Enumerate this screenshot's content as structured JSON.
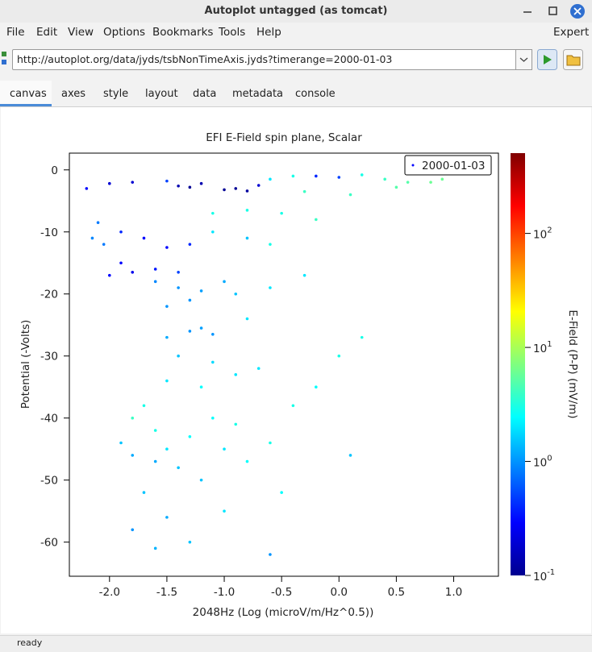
{
  "window": {
    "title": "Autoplot untagged (as tomcat)"
  },
  "menu": [
    "File",
    "Edit",
    "View",
    "Options",
    "Bookmarks",
    "Tools",
    "Help"
  ],
  "expert": "Expert",
  "url": "http://autoplot.org/data/jyds/tsbNonTimeAxis.jyds?timerange=2000-01-03",
  "tabs": [
    "canvas",
    "axes",
    "style",
    "layout",
    "data",
    "metadata",
    "console"
  ],
  "active_tab": 0,
  "status": "ready",
  "chart_data": {
    "type": "scatter",
    "title": "EFI  E-Field spin plane, Scalar",
    "xlabel": "2048Hz (Log (microV/m/Hz^0.5))",
    "ylabel": "Potential (-Volts)",
    "zlabel": "E-Field (P-P) (mV/m)",
    "xlim": [
      -2.35,
      1.39
    ],
    "ylim": [
      -65.5,
      2.7
    ],
    "zlim": [
      0.1,
      506
    ],
    "zscale": "log",
    "colormap": "jet",
    "xticks": [
      {
        "value": -2,
        "label": "-2.0"
      },
      {
        "value": -1.5,
        "label": "-1.5"
      },
      {
        "value": -1,
        "label": "-1.0"
      },
      {
        "value": -0.5,
        "label": "-0.5"
      },
      {
        "value": 0,
        "label": "0.0"
      },
      0.5,
      {
        "value": 1,
        "label": "1.0"
      }
    ],
    "yticks": [
      0,
      -10,
      -20,
      -30,
      -40,
      -50,
      -60
    ],
    "zticks": [
      {
        "value": 0.1,
        "label": "10^-1"
      },
      {
        "value": 1,
        "label": "10^0"
      },
      {
        "value": 10,
        "label": "10^1"
      },
      {
        "value": 100,
        "label": "10^2"
      }
    ],
    "legend": "top-right",
    "series": [
      {
        "name": "2000-01-03",
        "x": [
          -2.2,
          -2.0,
          -1.8,
          -1.5,
          -1.4,
          -1.3,
          -1.2,
          -1.0,
          -0.9,
          -0.8,
          -0.7,
          -0.6,
          -0.4,
          -0.2,
          0.0,
          0.2,
          0.4,
          0.6,
          0.8,
          0.9,
          0.5,
          -0.3,
          0.1,
          -1.1,
          -0.8,
          -0.5,
          -0.2,
          -2.1,
          -2.15,
          -2.05,
          -1.9,
          -1.7,
          -1.5,
          -1.3,
          -1.1,
          -0.8,
          -0.6,
          -1.9,
          -1.8,
          -2.0,
          -1.6,
          -1.4,
          -1.6,
          -1.4,
          -1.2,
          -1.0,
          -1.3,
          -1.5,
          -0.9,
          -0.6,
          -0.3,
          -1.3,
          -1.2,
          -1.1,
          -1.5,
          -0.8,
          -1.4,
          -1.1,
          -0.9,
          -1.2,
          -0.7,
          -1.5,
          -1.7,
          -1.8,
          -1.6,
          -1.9,
          -1.8,
          -1.5,
          -1.3,
          -1.1,
          -0.9,
          -1.0,
          -1.4,
          -1.6,
          -1.2,
          -0.8,
          -0.6,
          -0.4,
          -0.2,
          0.0,
          0.2,
          -1.7,
          -1.5,
          -1.8,
          -1.6,
          -1.3,
          -1.0,
          -0.5,
          0.1,
          -0.6
        ],
        "values": [
          -3,
          -2.2,
          -2,
          -1.8,
          -2.6,
          -2.8,
          -2.2,
          -3.2,
          -3,
          -3.4,
          -2.5,
          -1.5,
          -1,
          -1,
          -1.2,
          -0.8,
          -1.5,
          -2,
          -2,
          -1.5,
          -2.8,
          -3.5,
          -4,
          -7,
          -6.5,
          -7,
          -8,
          -8.5,
          -11,
          -12,
          -10,
          -11,
          -12.5,
          -12,
          -10,
          -11,
          -12,
          -15,
          -16.5,
          -17,
          -16,
          -16.5,
          -18,
          -19,
          -19.5,
          -18,
          -21,
          -22,
          -20,
          -19,
          -17,
          -26,
          -25.5,
          -26.5,
          -27,
          -24,
          -30,
          -31,
          -33,
          -35,
          -32,
          -34,
          -38,
          -40,
          -42,
          -44,
          -46,
          -45,
          -43,
          -40,
          -41,
          -45,
          -48,
          -47,
          -50,
          -47,
          -44,
          -38,
          -35,
          -30,
          -27,
          -52,
          -56,
          -58,
          -61,
          -60,
          -55,
          -52,
          -46,
          -62
        ],
        "z": [
          0.3,
          0.2,
          0.2,
          0.5,
          0.15,
          0.12,
          0.15,
          0.12,
          0.12,
          0.13,
          0.2,
          2,
          3,
          0.4,
          0.5,
          3,
          4,
          5,
          6,
          6,
          5,
          4,
          4,
          3,
          3,
          3,
          4,
          0.8,
          0.9,
          0.8,
          0.4,
          0.3,
          0.3,
          0.4,
          2,
          1.5,
          3,
          0.3,
          0.25,
          0.3,
          0.35,
          0.5,
          0.9,
          1,
          1.1,
          1.2,
          1,
          1,
          1.5,
          2,
          2,
          1,
          1.1,
          1,
          1.2,
          2,
          1.5,
          1.8,
          2,
          2.5,
          2,
          2,
          3,
          4,
          3,
          1.5,
          1.2,
          2,
          2.5,
          2.5,
          3,
          2,
          1.5,
          1.2,
          1.5,
          2.5,
          3,
          3,
          2.5,
          3,
          3,
          1.5,
          1.2,
          1,
          1.3,
          1.5,
          2,
          2.5,
          1.5,
          1
        ]
      }
    ]
  }
}
